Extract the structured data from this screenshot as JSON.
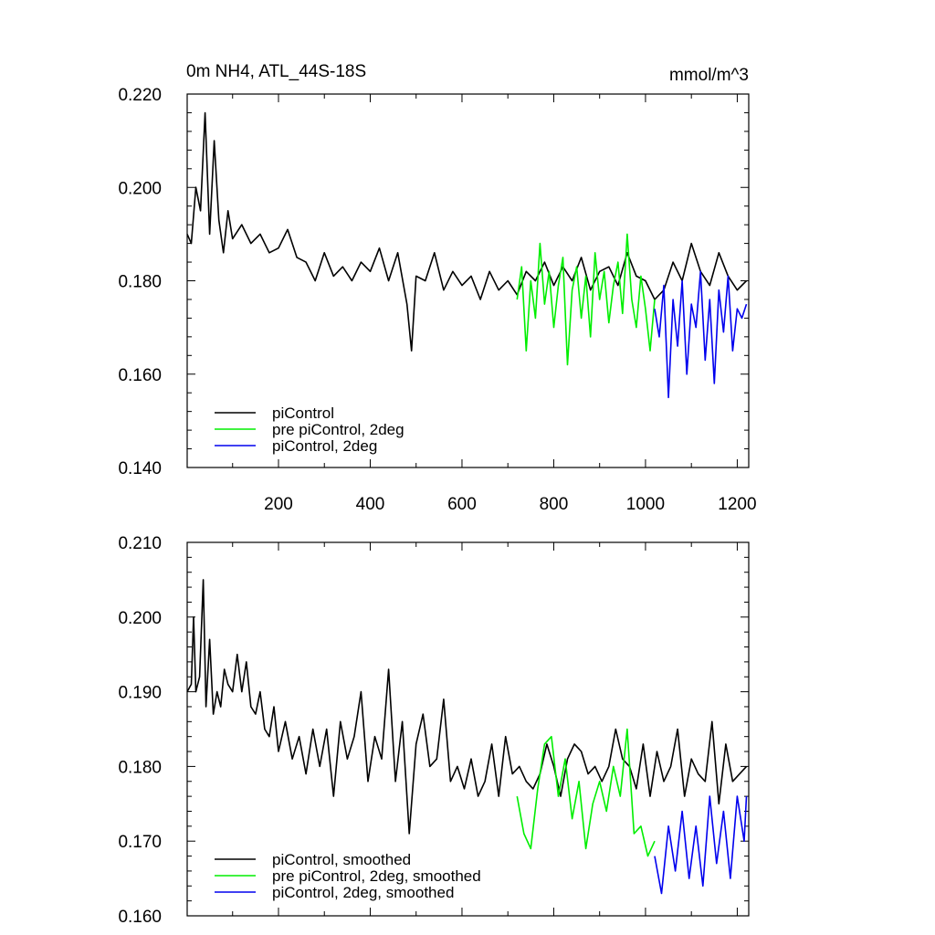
{
  "chart_data": [
    {
      "type": "line",
      "title": "0m NH4, ATL_44S-18S",
      "units": "mmol/m^3",
      "xlim": [
        1,
        1225
      ],
      "ylim": [
        0.14,
        0.22
      ],
      "xticks": [
        200,
        400,
        600,
        800,
        1000,
        1200
      ],
      "xtick_labels": [
        "200",
        "400",
        "600",
        "800",
        "1000",
        "1200"
      ],
      "yticks": [
        0.14,
        0.16,
        0.18,
        0.2,
        0.22
      ],
      "ytick_labels": [
        "0.140",
        "0.160",
        "0.180",
        "0.200",
        "0.220"
      ],
      "legend_position": "bottom-left",
      "series": [
        {
          "name": "piControl",
          "color": "#000000",
          "x": [
            1,
            10,
            20,
            30,
            40,
            50,
            60,
            70,
            80,
            90,
            100,
            120,
            140,
            160,
            180,
            200,
            220,
            240,
            260,
            280,
            300,
            320,
            340,
            360,
            380,
            400,
            420,
            440,
            460,
            480,
            490,
            500,
            520,
            540,
            560,
            580,
            600,
            620,
            640,
            660,
            680,
            700,
            720,
            740,
            760,
            780,
            800,
            820,
            840,
            860,
            880,
            900,
            920,
            940,
            960,
            980,
            1000,
            1020,
            1040,
            1060,
            1080,
            1100,
            1120,
            1140,
            1160,
            1180,
            1200,
            1220
          ],
          "y": [
            0.19,
            0.188,
            0.2,
            0.195,
            0.216,
            0.19,
            0.21,
            0.193,
            0.186,
            0.195,
            0.189,
            0.192,
            0.188,
            0.19,
            0.186,
            0.187,
            0.191,
            0.185,
            0.184,
            0.18,
            0.186,
            0.181,
            0.183,
            0.18,
            0.184,
            0.182,
            0.187,
            0.18,
            0.186,
            0.175,
            0.165,
            0.181,
            0.18,
            0.186,
            0.178,
            0.182,
            0.179,
            0.181,
            0.176,
            0.182,
            0.178,
            0.18,
            0.177,
            0.182,
            0.18,
            0.184,
            0.179,
            0.183,
            0.18,
            0.185,
            0.178,
            0.182,
            0.183,
            0.179,
            0.186,
            0.181,
            0.18,
            0.176,
            0.178,
            0.184,
            0.18,
            0.188,
            0.182,
            0.179,
            0.186,
            0.181,
            0.178,
            0.18
          ]
        },
        {
          "name": "pre piControl, 2deg",
          "color": "#00ee00",
          "x": [
            720,
            730,
            740,
            750,
            760,
            770,
            780,
            790,
            800,
            810,
            820,
            830,
            840,
            850,
            860,
            870,
            880,
            890,
            900,
            910,
            920,
            930,
            940,
            950,
            960,
            970,
            980,
            990,
            1000,
            1010,
            1020
          ],
          "y": [
            0.176,
            0.183,
            0.165,
            0.18,
            0.172,
            0.188,
            0.175,
            0.182,
            0.17,
            0.179,
            0.185,
            0.162,
            0.178,
            0.183,
            0.172,
            0.181,
            0.168,
            0.186,
            0.176,
            0.182,
            0.171,
            0.179,
            0.184,
            0.173,
            0.19,
            0.176,
            0.17,
            0.181,
            0.174,
            0.165,
            0.176
          ]
        },
        {
          "name": "piControl, 2deg",
          "color": "#0000ee",
          "x": [
            1020,
            1030,
            1040,
            1050,
            1060,
            1070,
            1080,
            1090,
            1100,
            1110,
            1120,
            1130,
            1140,
            1150,
            1160,
            1170,
            1180,
            1190,
            1200,
            1210,
            1220
          ],
          "y": [
            0.174,
            0.168,
            0.179,
            0.155,
            0.176,
            0.166,
            0.18,
            0.16,
            0.175,
            0.17,
            0.182,
            0.163,
            0.176,
            0.158,
            0.178,
            0.169,
            0.181,
            0.165,
            0.174,
            0.172,
            0.175
          ]
        }
      ]
    },
    {
      "type": "line",
      "xlim": [
        1,
        1225
      ],
      "ylim": [
        0.16,
        0.21
      ],
      "xticks": [
        200,
        400,
        600,
        800,
        1000,
        1200
      ],
      "yticks": [
        0.16,
        0.17,
        0.18,
        0.19,
        0.2,
        0.21
      ],
      "ytick_labels": [
        "0.160",
        "0.170",
        "0.180",
        "0.190",
        "0.200",
        "0.210"
      ],
      "legend_position": "bottom-left",
      "series": [
        {
          "name": "piControl, smoothed",
          "color": "#000000",
          "x": [
            1,
            10,
            15,
            20,
            28,
            36,
            42,
            50,
            58,
            66,
            74,
            82,
            90,
            100,
            110,
            120,
            130,
            140,
            150,
            160,
            170,
            180,
            190,
            200,
            215,
            230,
            245,
            260,
            275,
            290,
            305,
            320,
            335,
            350,
            365,
            380,
            395,
            410,
            425,
            440,
            455,
            470,
            485,
            500,
            515,
            530,
            545,
            560,
            575,
            590,
            605,
            620,
            635,
            650,
            665,
            680,
            695,
            710,
            725,
            740,
            755,
            770,
            785,
            800,
            815,
            830,
            845,
            860,
            875,
            890,
            905,
            920,
            935,
            950,
            965,
            980,
            995,
            1010,
            1025,
            1040,
            1055,
            1070,
            1085,
            1100,
            1115,
            1130,
            1145,
            1160,
            1175,
            1190,
            1205,
            1220
          ],
          "y": [
            0.19,
            0.191,
            0.2,
            0.19,
            0.192,
            0.205,
            0.188,
            0.197,
            0.187,
            0.19,
            0.188,
            0.193,
            0.191,
            0.19,
            0.195,
            0.19,
            0.194,
            0.188,
            0.187,
            0.19,
            0.185,
            0.184,
            0.188,
            0.182,
            0.186,
            0.181,
            0.184,
            0.179,
            0.185,
            0.18,
            0.185,
            0.176,
            0.186,
            0.181,
            0.184,
            0.19,
            0.178,
            0.184,
            0.181,
            0.193,
            0.178,
            0.186,
            0.171,
            0.183,
            0.187,
            0.18,
            0.181,
            0.189,
            0.178,
            0.18,
            0.177,
            0.181,
            0.176,
            0.178,
            0.183,
            0.176,
            0.184,
            0.179,
            0.18,
            0.178,
            0.177,
            0.179,
            0.183,
            0.18,
            0.176,
            0.181,
            0.183,
            0.182,
            0.179,
            0.18,
            0.178,
            0.18,
            0.185,
            0.181,
            0.18,
            0.177,
            0.183,
            0.176,
            0.182,
            0.178,
            0.18,
            0.185,
            0.176,
            0.181,
            0.179,
            0.178,
            0.186,
            0.175,
            0.183,
            0.178,
            0.179,
            0.18
          ]
        },
        {
          "name": "pre piControl, 2deg, smoothed",
          "color": "#00ee00",
          "x": [
            720,
            735,
            750,
            765,
            780,
            795,
            810,
            825,
            840,
            855,
            870,
            885,
            900,
            915,
            930,
            945,
            960,
            975,
            990,
            1005,
            1020
          ],
          "y": [
            0.176,
            0.171,
            0.169,
            0.177,
            0.183,
            0.184,
            0.176,
            0.181,
            0.173,
            0.178,
            0.169,
            0.175,
            0.178,
            0.174,
            0.18,
            0.176,
            0.185,
            0.171,
            0.172,
            0.168,
            0.17
          ]
        },
        {
          "name": "piControl, 2deg, smoothed",
          "color": "#0000ee",
          "x": [
            1020,
            1035,
            1050,
            1065,
            1080,
            1095,
            1110,
            1125,
            1140,
            1155,
            1170,
            1185,
            1200,
            1215,
            1220
          ],
          "y": [
            0.168,
            0.163,
            0.172,
            0.166,
            0.174,
            0.165,
            0.172,
            0.164,
            0.176,
            0.167,
            0.174,
            0.165,
            0.176,
            0.17,
            0.176
          ]
        }
      ]
    }
  ]
}
